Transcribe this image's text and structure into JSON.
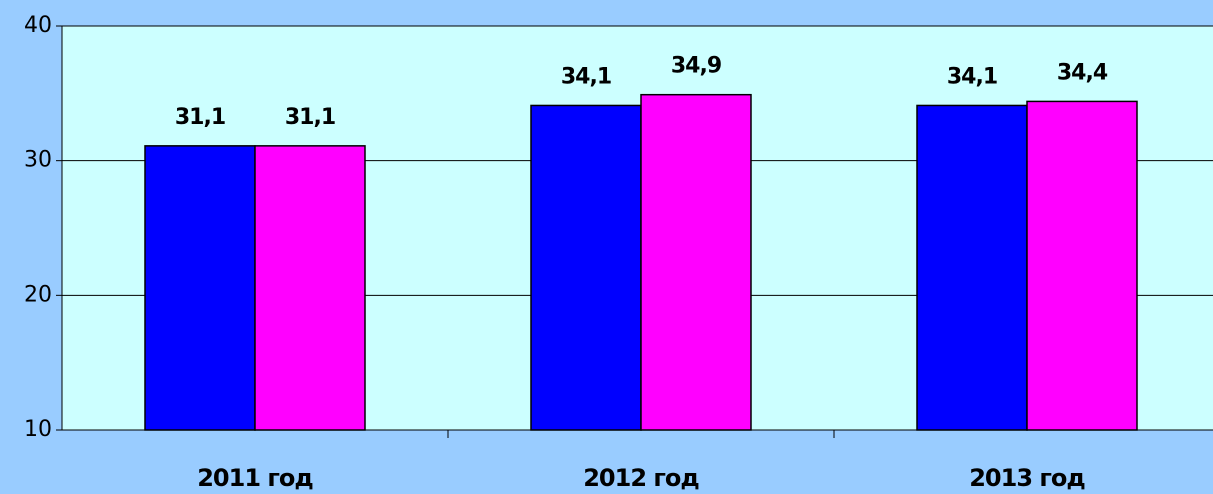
{
  "chart_data": {
    "type": "bar",
    "categories": [
      "2011 год",
      "2012 год",
      "2013 год"
    ],
    "series": [
      {
        "color": "#0000ff",
        "values": [
          31.1,
          34.1,
          34.1
        ],
        "value_labels": [
          "31,1",
          "34,1",
          "34,1"
        ]
      },
      {
        "color": "#ff00ff",
        "values": [
          31.1,
          34.9,
          34.4
        ],
        "value_labels": [
          "31,1",
          "34,9",
          "34,4"
        ]
      }
    ],
    "ylim": [
      10,
      40
    ],
    "yticks": [
      10,
      20,
      30,
      40
    ],
    "grid": true
  }
}
